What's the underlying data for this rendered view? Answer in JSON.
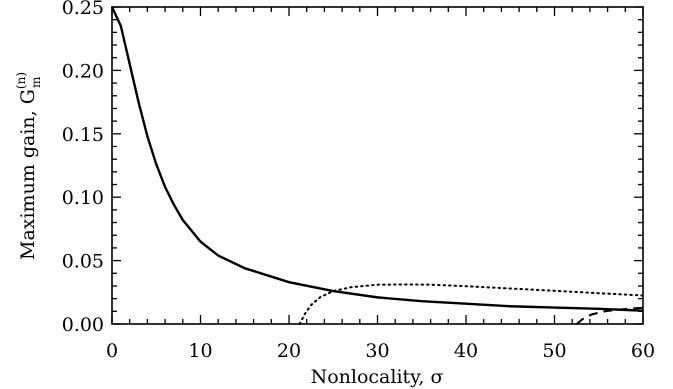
{
  "chart_data": {
    "type": "line",
    "xlabel": "Nonlocality, σ",
    "ylabel": "Maximum gain, G",
    "ylabel_super": "(n)",
    "ylabel_sub": "m",
    "xlim": [
      0,
      60
    ],
    "ylim": [
      0,
      0.25
    ],
    "xticks": [
      "0",
      "10",
      "20",
      "30",
      "40",
      "50",
      "60"
    ],
    "yticks": [
      "0.00",
      "0.05",
      "0.10",
      "0.15",
      "0.20",
      "0.25"
    ],
    "grid": false,
    "series": [
      {
        "style": "solid",
        "x": [
          0,
          1,
          2,
          3,
          4,
          5,
          6,
          7,
          8,
          10,
          12,
          15,
          20,
          25,
          30,
          35,
          40,
          45,
          50,
          55,
          60
        ],
        "y": [
          0.25,
          0.235,
          0.205,
          0.175,
          0.148,
          0.126,
          0.108,
          0.094,
          0.082,
          0.065,
          0.054,
          0.044,
          0.033,
          0.026,
          0.021,
          0.018,
          0.016,
          0.014,
          0.013,
          0.012,
          0.0105
        ]
      },
      {
        "style": "dotted",
        "x": [
          21.2,
          21.8,
          22.5,
          23.5,
          25,
          27,
          30,
          33,
          36,
          40,
          45,
          50,
          55,
          60
        ],
        "y": [
          0,
          0.008,
          0.015,
          0.021,
          0.026,
          0.029,
          0.031,
          0.0312,
          0.031,
          0.0298,
          0.028,
          0.0262,
          0.0243,
          0.0225
        ]
      },
      {
        "style": "dashed",
        "x": [
          52.5,
          53.2,
          54.2,
          55.5,
          57,
          58.5,
          60
        ],
        "y": [
          0,
          0.004,
          0.0075,
          0.0098,
          0.0112,
          0.0121,
          0.0128
        ]
      }
    ]
  }
}
